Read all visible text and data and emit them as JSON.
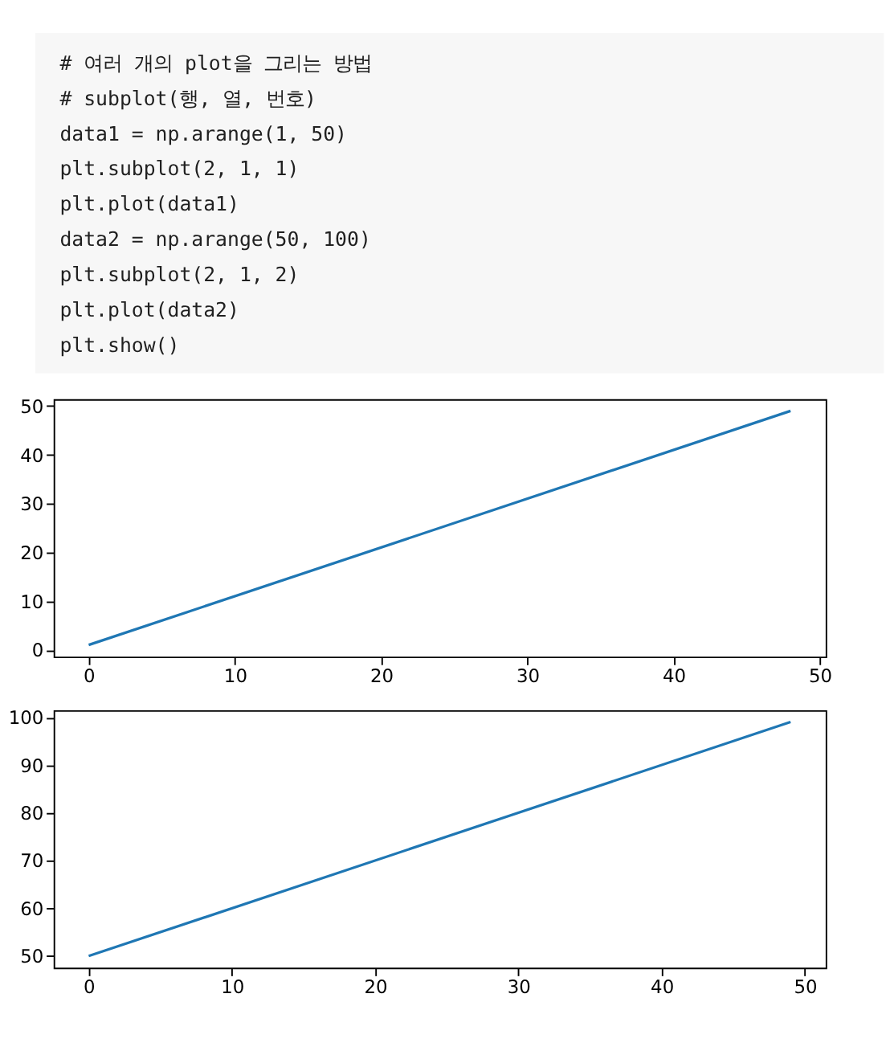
{
  "chart_data": [
    {
      "type": "other",
      "annotations": [
        "# 여러 개의 plot을 그리는 방법",
        "# subplot(행, 열, 번호)",
        "data1 = np.arange(1, 50)",
        "plt.subplot(2, 1, 1)",
        "plt.plot(data1)",
        "data2 = np.arange(50, 100)",
        "plt.subplot(2, 1, 2)",
        "plt.plot(data2)",
        "plt.show()"
      ]
    },
    {
      "type": "line",
      "x": [
        0,
        48
      ],
      "series": [
        {
          "color": "#1f77b4",
          "values": [
            1,
            49
          ]
        }
      ],
      "xlim": [
        -2.4,
        50.4
      ],
      "xticks": [
        0,
        10,
        20,
        30,
        40,
        50
      ],
      "ylim": [
        -1.4,
        51.4
      ],
      "yticks": [
        0,
        10,
        20,
        30,
        40,
        50
      ],
      "grid": false
    },
    {
      "type": "line",
      "x": [
        0,
        49
      ],
      "series": [
        {
          "color": "#1f77b4",
          "values": [
            50,
            99
          ]
        }
      ],
      "xlim": [
        -2.45,
        51.45
      ],
      "xticks": [
        0,
        10,
        20,
        30,
        40,
        50
      ],
      "ylim": [
        47.55,
        101.45
      ],
      "yticks": [
        50,
        60,
        70,
        80,
        90,
        100
      ],
      "grid": false
    }
  ]
}
